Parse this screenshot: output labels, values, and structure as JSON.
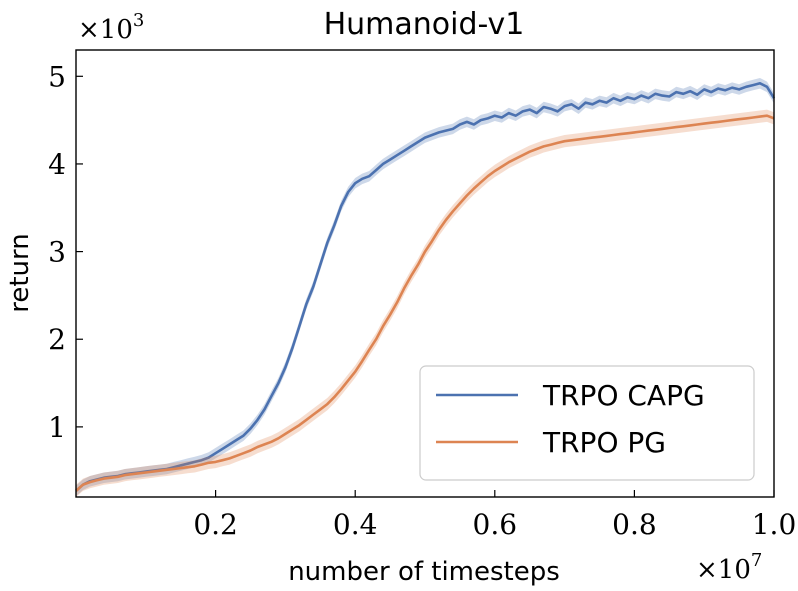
{
  "chart_data": {
    "type": "line",
    "title": "Humanoid-v1",
    "xlabel": "number of timesteps",
    "ylabel": "return",
    "x_multiplier": "×10",
    "x_multiplier_exp": "7",
    "y_multiplier": "×10",
    "y_multiplier_exp": "3",
    "xlim": [
      0.0,
      1.0
    ],
    "ylim": [
      0.2,
      5.3
    ],
    "xticks": [
      0.2,
      0.4,
      0.6,
      0.8,
      1.0
    ],
    "xtick_labels": [
      "0.2",
      "0.4",
      "0.6",
      "0.8",
      "1.0"
    ],
    "yticks": [
      1,
      2,
      3,
      4,
      5
    ],
    "ytick_labels": [
      "1",
      "2",
      "3",
      "4",
      "5"
    ],
    "grid": false,
    "legend_position": "bottom-right",
    "series": [
      {
        "name": "TRPO CAPG",
        "color": "#4c72b0",
        "band": 0.06,
        "x": [
          0.0,
          0.01,
          0.02,
          0.03,
          0.04,
          0.05,
          0.06,
          0.07,
          0.08,
          0.09,
          0.1,
          0.11,
          0.12,
          0.13,
          0.14,
          0.15,
          0.16,
          0.17,
          0.18,
          0.19,
          0.2,
          0.21,
          0.22,
          0.23,
          0.24,
          0.25,
          0.26,
          0.27,
          0.28,
          0.29,
          0.3,
          0.31,
          0.32,
          0.33,
          0.34,
          0.35,
          0.36,
          0.37,
          0.38,
          0.39,
          0.4,
          0.41,
          0.42,
          0.43,
          0.44,
          0.45,
          0.46,
          0.47,
          0.48,
          0.49,
          0.5,
          0.51,
          0.52,
          0.53,
          0.54,
          0.55,
          0.56,
          0.57,
          0.58,
          0.59,
          0.6,
          0.61,
          0.62,
          0.63,
          0.64,
          0.65,
          0.66,
          0.67,
          0.68,
          0.69,
          0.7,
          0.71,
          0.72,
          0.73,
          0.74,
          0.75,
          0.76,
          0.77,
          0.78,
          0.79,
          0.8,
          0.81,
          0.82,
          0.83,
          0.84,
          0.85,
          0.86,
          0.87,
          0.88,
          0.89,
          0.9,
          0.91,
          0.92,
          0.93,
          0.94,
          0.95,
          0.96,
          0.97,
          0.98,
          0.99,
          1.0
        ],
        "y": [
          0.27,
          0.34,
          0.38,
          0.4,
          0.42,
          0.43,
          0.44,
          0.46,
          0.47,
          0.48,
          0.49,
          0.5,
          0.51,
          0.52,
          0.54,
          0.56,
          0.58,
          0.6,
          0.62,
          0.65,
          0.7,
          0.75,
          0.8,
          0.85,
          0.9,
          0.98,
          1.08,
          1.2,
          1.35,
          1.5,
          1.68,
          1.9,
          2.15,
          2.4,
          2.6,
          2.85,
          3.1,
          3.3,
          3.52,
          3.68,
          3.78,
          3.83,
          3.86,
          3.93,
          4.0,
          4.05,
          4.1,
          4.15,
          4.2,
          4.25,
          4.3,
          4.33,
          4.36,
          4.38,
          4.4,
          4.45,
          4.48,
          4.45,
          4.5,
          4.52,
          4.55,
          4.53,
          4.58,
          4.55,
          4.6,
          4.62,
          4.58,
          4.65,
          4.63,
          4.6,
          4.66,
          4.68,
          4.63,
          4.7,
          4.68,
          4.72,
          4.7,
          4.75,
          4.72,
          4.76,
          4.74,
          4.78,
          4.75,
          4.8,
          4.78,
          4.77,
          4.82,
          4.8,
          4.83,
          4.79,
          4.85,
          4.82,
          4.86,
          4.84,
          4.87,
          4.85,
          4.88,
          4.9,
          4.92,
          4.88,
          4.75
        ]
      },
      {
        "name": "TRPO PG",
        "color": "#dd8452",
        "band": 0.07,
        "x": [
          0.0,
          0.01,
          0.02,
          0.03,
          0.04,
          0.05,
          0.06,
          0.07,
          0.08,
          0.09,
          0.1,
          0.11,
          0.12,
          0.13,
          0.14,
          0.15,
          0.16,
          0.17,
          0.18,
          0.19,
          0.2,
          0.21,
          0.22,
          0.23,
          0.24,
          0.25,
          0.26,
          0.27,
          0.28,
          0.29,
          0.3,
          0.31,
          0.32,
          0.33,
          0.34,
          0.35,
          0.36,
          0.37,
          0.38,
          0.39,
          0.4,
          0.41,
          0.42,
          0.43,
          0.44,
          0.45,
          0.46,
          0.47,
          0.48,
          0.49,
          0.5,
          0.51,
          0.52,
          0.53,
          0.54,
          0.55,
          0.56,
          0.57,
          0.58,
          0.59,
          0.6,
          0.61,
          0.62,
          0.63,
          0.64,
          0.65,
          0.66,
          0.67,
          0.68,
          0.69,
          0.7,
          0.71,
          0.72,
          0.73,
          0.74,
          0.75,
          0.76,
          0.77,
          0.78,
          0.79,
          0.8,
          0.81,
          0.82,
          0.83,
          0.84,
          0.85,
          0.86,
          0.87,
          0.88,
          0.89,
          0.9,
          0.91,
          0.92,
          0.93,
          0.94,
          0.95,
          0.96,
          0.97,
          0.98,
          0.99,
          1.0
        ],
        "y": [
          0.27,
          0.34,
          0.37,
          0.39,
          0.41,
          0.42,
          0.43,
          0.45,
          0.46,
          0.47,
          0.48,
          0.49,
          0.5,
          0.51,
          0.52,
          0.53,
          0.54,
          0.55,
          0.57,
          0.59,
          0.6,
          0.62,
          0.64,
          0.67,
          0.7,
          0.73,
          0.77,
          0.8,
          0.83,
          0.87,
          0.92,
          0.97,
          1.02,
          1.08,
          1.14,
          1.2,
          1.26,
          1.34,
          1.43,
          1.53,
          1.63,
          1.75,
          1.88,
          2.0,
          2.15,
          2.28,
          2.42,
          2.58,
          2.72,
          2.85,
          3.0,
          3.12,
          3.25,
          3.36,
          3.46,
          3.55,
          3.64,
          3.72,
          3.79,
          3.86,
          3.92,
          3.97,
          4.02,
          4.06,
          4.1,
          4.14,
          4.17,
          4.2,
          4.22,
          4.24,
          4.26,
          4.27,
          4.28,
          4.29,
          4.3,
          4.31,
          4.32,
          4.33,
          4.34,
          4.35,
          4.36,
          4.37,
          4.38,
          4.39,
          4.4,
          4.41,
          4.42,
          4.43,
          4.44,
          4.45,
          4.46,
          4.47,
          4.48,
          4.49,
          4.5,
          4.51,
          4.52,
          4.53,
          4.54,
          4.55,
          4.52
        ]
      }
    ]
  }
}
